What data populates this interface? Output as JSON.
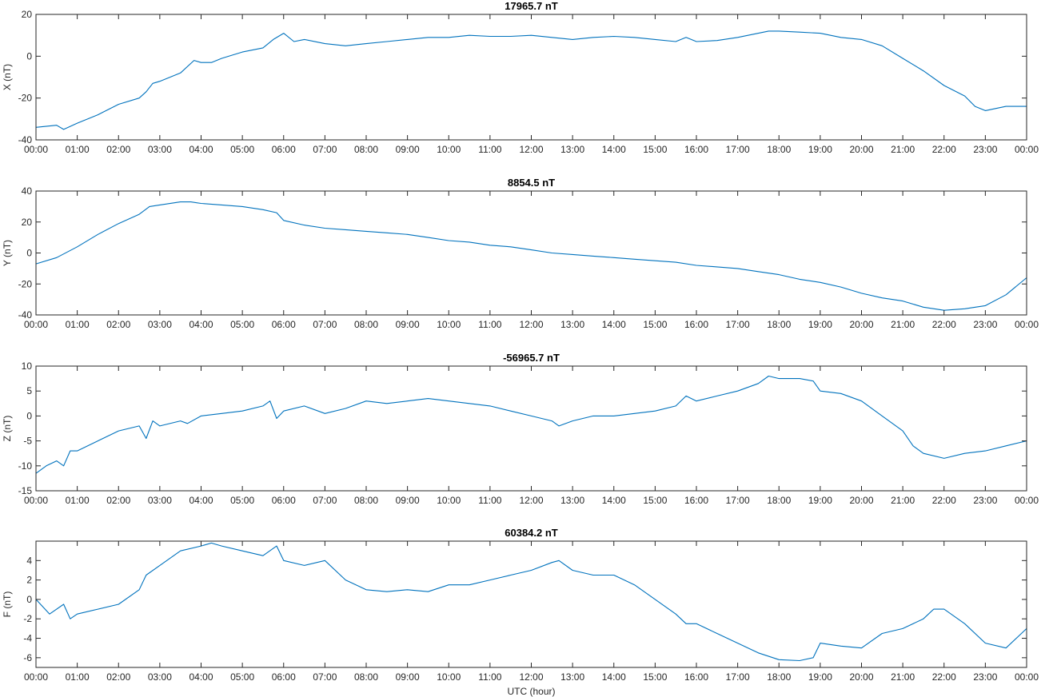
{
  "chart_data": [
    {
      "type": "line",
      "title": "17965.7 nT",
      "ylabel": "X (nT)",
      "xlabel": "",
      "xlim": [
        0,
        24
      ],
      "ylim": [
        -40,
        20
      ],
      "yticks": [
        -40,
        -20,
        0,
        20
      ],
      "xticks": [
        "00:00",
        "01:00",
        "02:00",
        "03:00",
        "04:00",
        "05:00",
        "06:00",
        "07:00",
        "08:00",
        "09:00",
        "10:00",
        "11:00",
        "12:00",
        "13:00",
        "14:00",
        "15:00",
        "16:00",
        "17:00",
        "18:00",
        "19:00",
        "20:00",
        "21:00",
        "22:00",
        "23:00",
        "00:00"
      ],
      "grid": false,
      "color": "#0072bd",
      "series": [
        {
          "x": [
            0,
            0.5,
            0.67,
            1,
            1.5,
            2,
            2.5,
            2.67,
            2.83,
            3,
            3.5,
            3.83,
            4,
            4.25,
            4.5,
            5,
            5.5,
            5.75,
            6,
            6.25,
            6.5,
            7,
            7.5,
            8,
            8.5,
            9,
            9.5,
            10,
            10.5,
            11,
            11.5,
            12,
            12.5,
            13,
            13.5,
            14,
            14.5,
            15,
            15.5,
            15.75,
            16,
            16.5,
            17,
            17.5,
            17.75,
            18,
            18.5,
            19,
            19.5,
            20,
            20.5,
            21,
            21.5,
            22,
            22.5,
            22.75,
            23,
            23.5,
            24
          ],
          "y": [
            -34,
            -33,
            -35,
            -32,
            -28,
            -23,
            -20,
            -17,
            -13,
            -12,
            -8,
            -2,
            -3,
            -3,
            -1,
            2,
            4,
            8,
            11,
            7,
            8,
            6,
            5,
            6,
            7,
            8,
            9,
            9,
            10,
            9.5,
            9.5,
            10,
            9,
            8,
            9,
            9.5,
            9,
            8,
            7,
            9,
            7,
            7.5,
            9,
            11,
            12,
            12,
            11.5,
            11,
            9,
            8,
            5,
            -1,
            -7,
            -14,
            -19,
            -24,
            -26,
            -24,
            -24
          ]
        }
      ]
    },
    {
      "type": "line",
      "title": "8854.5 nT",
      "ylabel": "Y (nT)",
      "xlabel": "",
      "xlim": [
        0,
        24
      ],
      "ylim": [
        -40,
        40
      ],
      "yticks": [
        -40,
        -20,
        0,
        20,
        40
      ],
      "xticks": [
        "00:00",
        "01:00",
        "02:00",
        "03:00",
        "04:00",
        "05:00",
        "06:00",
        "07:00",
        "08:00",
        "09:00",
        "10:00",
        "11:00",
        "12:00",
        "13:00",
        "14:00",
        "15:00",
        "16:00",
        "17:00",
        "18:00",
        "19:00",
        "20:00",
        "21:00",
        "22:00",
        "23:00",
        "00:00"
      ],
      "grid": false,
      "color": "#0072bd",
      "series": [
        {
          "x": [
            0,
            0.5,
            1,
            1.5,
            2,
            2.5,
            2.75,
            3,
            3.5,
            3.75,
            4,
            4.5,
            5,
            5.5,
            5.83,
            6,
            6.5,
            7,
            7.5,
            8,
            8.5,
            9,
            9.5,
            10,
            10.5,
            11,
            11.5,
            12,
            12.5,
            13,
            13.5,
            14,
            14.5,
            15,
            15.5,
            16,
            16.5,
            17,
            17.5,
            18,
            18.5,
            19,
            19.5,
            20,
            20.5,
            21,
            21.5,
            22,
            22.5,
            23,
            23.5,
            24
          ],
          "y": [
            -7,
            -3,
            4,
            12,
            19,
            25,
            30,
            31,
            33,
            33,
            32,
            31,
            30,
            28,
            26,
            21,
            18,
            16,
            15,
            14,
            13,
            12,
            10,
            8,
            7,
            5,
            4,
            2,
            0,
            -1,
            -2,
            -3,
            -4,
            -5,
            -6,
            -8,
            -9,
            -10,
            -12,
            -14,
            -17,
            -19,
            -22,
            -26,
            -29,
            -31,
            -35,
            -37,
            -36,
            -34,
            -27,
            -16
          ]
        }
      ]
    },
    {
      "type": "line",
      "title": "-56965.7 nT",
      "ylabel": "Z (nT)",
      "xlabel": "",
      "xlim": [
        0,
        24
      ],
      "ylim": [
        -15,
        10
      ],
      "yticks": [
        -15,
        -10,
        -5,
        0,
        5,
        10
      ],
      "xticks": [
        "00:00",
        "01:00",
        "02:00",
        "03:00",
        "04:00",
        "05:00",
        "06:00",
        "07:00",
        "08:00",
        "09:00",
        "10:00",
        "11:00",
        "12:00",
        "13:00",
        "14:00",
        "15:00",
        "16:00",
        "17:00",
        "18:00",
        "19:00",
        "20:00",
        "21:00",
        "22:00",
        "23:00",
        "00:00"
      ],
      "grid": false,
      "color": "#0072bd",
      "series": [
        {
          "x": [
            0,
            0.25,
            0.5,
            0.67,
            0.83,
            1,
            1.5,
            2,
            2.5,
            2.67,
            2.83,
            3,
            3.5,
            3.67,
            4,
            4.5,
            5,
            5.5,
            5.67,
            5.83,
            6,
            6.5,
            7,
            7.5,
            8,
            8.5,
            9,
            9.5,
            10,
            10.5,
            11,
            11.5,
            12,
            12.5,
            12.67,
            13,
            13.5,
            14,
            14.5,
            15,
            15.5,
            15.75,
            16,
            16.5,
            17,
            17.5,
            17.75,
            18,
            18.5,
            18.83,
            19,
            19.5,
            20,
            20.5,
            21,
            21.25,
            21.5,
            22,
            22.5,
            23,
            23.5,
            24
          ],
          "y": [
            -11.5,
            -10,
            -9,
            -10,
            -7,
            -7,
            -5,
            -3,
            -2,
            -4.5,
            -1,
            -2,
            -1,
            -1.5,
            0,
            0.5,
            1,
            2,
            3,
            -0.5,
            1,
            2,
            0.5,
            1.5,
            3,
            2.5,
            3,
            3.5,
            3,
            2.5,
            2,
            1,
            0,
            -1,
            -2,
            -1,
            0,
            0,
            0.5,
            1,
            2,
            4,
            3,
            4,
            5,
            6.5,
            8,
            7.5,
            7.5,
            7,
            5,
            4.5,
            3,
            0,
            -3,
            -6,
            -7.5,
            -8.5,
            -7.5,
            -7,
            -6,
            -5
          ]
        }
      ]
    },
    {
      "type": "line",
      "title": "60384.2 nT",
      "ylabel": "F (nT)",
      "xlabel": "UTC (hour)",
      "xlim": [
        0,
        24
      ],
      "ylim": [
        -7,
        6
      ],
      "yticks": [
        -6,
        -4,
        -2,
        0,
        2,
        4
      ],
      "xticks": [
        "00:00",
        "01:00",
        "02:00",
        "03:00",
        "04:00",
        "05:00",
        "06:00",
        "07:00",
        "08:00",
        "09:00",
        "10:00",
        "11:00",
        "12:00",
        "13:00",
        "14:00",
        "15:00",
        "16:00",
        "17:00",
        "18:00",
        "19:00",
        "20:00",
        "21:00",
        "22:00",
        "23:00",
        "00:00"
      ],
      "grid": false,
      "color": "#0072bd",
      "series": [
        {
          "x": [
            0,
            0.33,
            0.67,
            0.83,
            1,
            1.5,
            2,
            2.5,
            2.67,
            3,
            3.5,
            4,
            4.25,
            4.5,
            5,
            5.5,
            5.83,
            6,
            6.5,
            7,
            7.5,
            8,
            8.5,
            9,
            9.5,
            10,
            10.5,
            11,
            11.5,
            12,
            12.5,
            12.67,
            13,
            13.5,
            14,
            14.5,
            15,
            15.5,
            15.75,
            16,
            16.5,
            17,
            17.5,
            18,
            18.5,
            18.83,
            19,
            19.5,
            20,
            20.5,
            21,
            21.5,
            21.75,
            22,
            22.5,
            23,
            23.5,
            24
          ],
          "y": [
            0,
            -1.5,
            -0.5,
            -2,
            -1.5,
            -1,
            -0.5,
            1,
            2.5,
            3.5,
            5,
            5.5,
            5.8,
            5.5,
            5,
            4.5,
            5.5,
            4,
            3.5,
            4,
            2,
            1,
            0.8,
            1,
            0.8,
            1.5,
            1.5,
            2,
            2.5,
            3,
            3.8,
            4,
            3,
            2.5,
            2.5,
            1.5,
            0,
            -1.5,
            -2.5,
            -2.5,
            -3.5,
            -4.5,
            -5.5,
            -6.2,
            -6.3,
            -6,
            -4.5,
            -4.8,
            -5,
            -3.5,
            -3,
            -2,
            -1,
            -1,
            -2.5,
            -4.5,
            -5,
            -3
          ]
        }
      ]
    }
  ]
}
